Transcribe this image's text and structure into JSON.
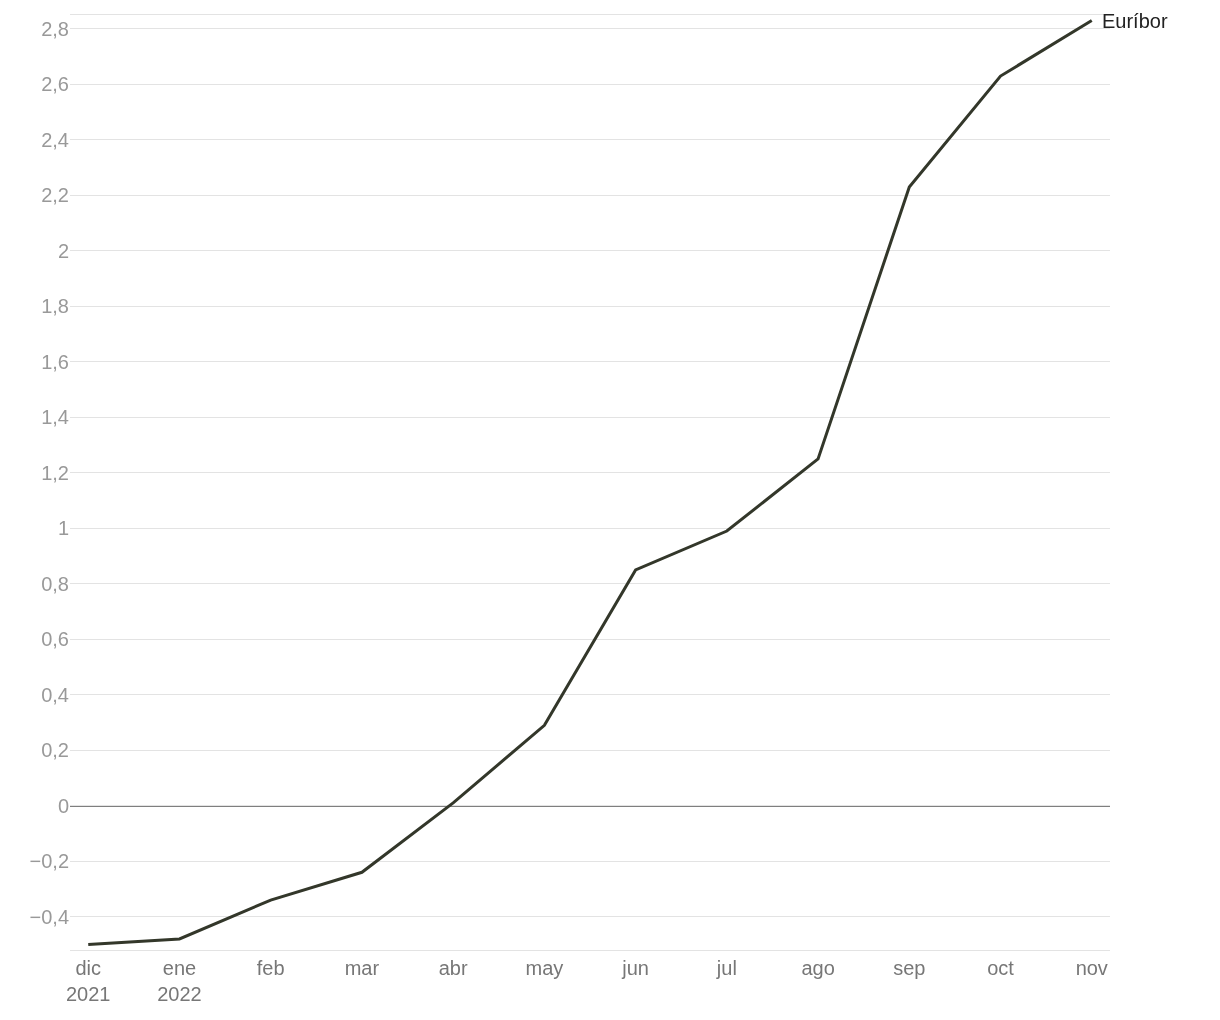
{
  "chart_data": {
    "type": "line",
    "categories": [
      "dic\n2021",
      "ene\n2022",
      "feb",
      "mar",
      "abr",
      "may",
      "jun",
      "jul",
      "ago",
      "sep",
      "oct",
      "nov"
    ],
    "series": [
      {
        "name": "Euríbor",
        "color": "#33372a",
        "values": [
          -0.5,
          -0.48,
          -0.34,
          -0.24,
          0.01,
          0.29,
          0.85,
          0.99,
          1.25,
          2.23,
          2.63,
          2.83
        ]
      }
    ],
    "ylim": [
      -0.52,
      2.85
    ],
    "yticks": [
      {
        "value": -0.4,
        "label": "−0,4"
      },
      {
        "value": -0.2,
        "label": "−0,2"
      },
      {
        "value": 0,
        "label": "0"
      },
      {
        "value": 0.2,
        "label": "0,2"
      },
      {
        "value": 0.4,
        "label": "0,4"
      },
      {
        "value": 0.6,
        "label": "0,6"
      },
      {
        "value": 0.8,
        "label": "0,8"
      },
      {
        "value": 1,
        "label": "1"
      },
      {
        "value": 1.2,
        "label": "1,2"
      },
      {
        "value": 1.4,
        "label": "1,4"
      },
      {
        "value": 1.6,
        "label": "1,6"
      },
      {
        "value": 1.8,
        "label": "1,8"
      },
      {
        "value": 2,
        "label": "2"
      },
      {
        "value": 2.2,
        "label": "2,2"
      },
      {
        "value": 2.4,
        "label": "2,4"
      },
      {
        "value": 2.6,
        "label": "2,6"
      },
      {
        "value": 2.8,
        "label": "2,8"
      }
    ],
    "ref_lines": [
      {
        "axis": "y",
        "value": 0,
        "color": "#000000"
      }
    ],
    "grid": "y",
    "legend": false,
    "marker": "none",
    "line_style": "solid"
  }
}
